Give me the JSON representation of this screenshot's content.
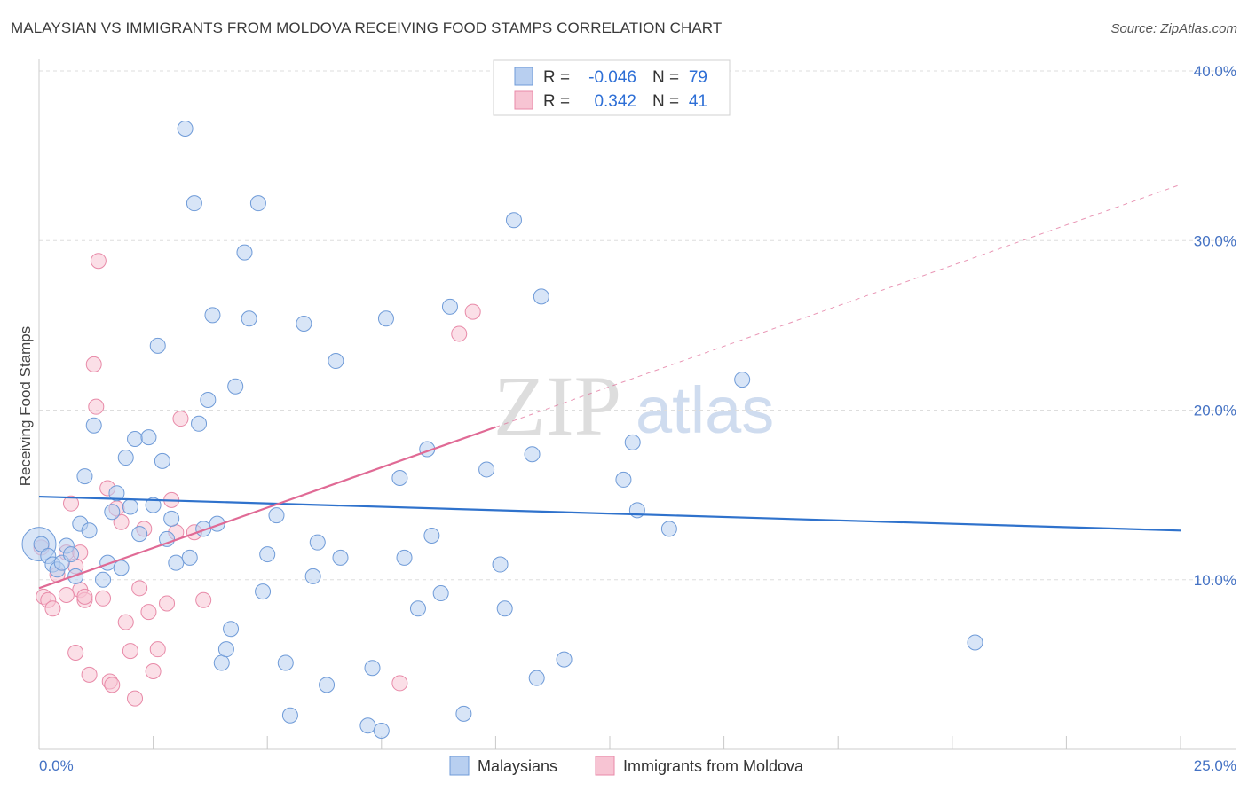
{
  "title": "MALAYSIAN VS IMMIGRANTS FROM MOLDOVA RECEIVING FOOD STAMPS CORRELATION CHART",
  "source": "Source: ZipAtlas.com",
  "watermark": {
    "zip": "ZIP",
    "atlas": "atlas"
  },
  "colors": {
    "blue_fill": "#b8cff0",
    "blue_stroke": "#6f9bd8",
    "blue_line": "#2f72cc",
    "pink_fill": "#f7c4d3",
    "pink_stroke": "#e88aa8",
    "pink_line": "#e06a95",
    "grid": "#dddddd",
    "axis_text": "#4472c4"
  },
  "legend": {
    "rows": [
      {
        "r_label": "R =",
        "r_value": "-0.046",
        "n_label": "N =",
        "n_value": "79"
      },
      {
        "r_label": "R =",
        "r_value": "0.342",
        "n_label": "N =",
        "n_value": "41"
      }
    ]
  },
  "bottom_legend": [
    "Malaysians",
    "Immigrants from Moldova"
  ],
  "chart_data": {
    "type": "scatter",
    "title": "MALAYSIAN VS IMMIGRANTS FROM MOLDOVA RECEIVING FOOD STAMPS CORRELATION CHART",
    "xlabel": "",
    "ylabel": "Receiving Food Stamps",
    "xlim": [
      0,
      25
    ],
    "ylim": [
      0,
      40
    ],
    "x_tick_labels": [
      "0.0%",
      "25.0%"
    ],
    "y_tick_values": [
      10,
      20,
      30,
      40
    ],
    "y_tick_labels": [
      "10.0%",
      "20.0%",
      "30.0%",
      "40.0%"
    ],
    "grid": true,
    "series": [
      {
        "name": "Malaysians",
        "r": -0.046,
        "n": 79,
        "trend": {
          "x0": 0,
          "y0": 14.9,
          "x1": 25,
          "y1": 12.9
        },
        "points": [
          [
            0.05,
            12.1
          ],
          [
            0.2,
            11.4
          ],
          [
            0.3,
            10.9
          ],
          [
            0.4,
            10.6
          ],
          [
            0.5,
            11.0
          ],
          [
            0.6,
            12.0
          ],
          [
            0.7,
            11.5
          ],
          [
            0.8,
            10.2
          ],
          [
            0.9,
            13.3
          ],
          [
            1.0,
            16.1
          ],
          [
            1.1,
            12.9
          ],
          [
            1.2,
            19.1
          ],
          [
            1.4,
            10.0
          ],
          [
            1.5,
            11.0
          ],
          [
            1.6,
            14.0
          ],
          [
            1.7,
            15.1
          ],
          [
            1.8,
            10.7
          ],
          [
            1.9,
            17.2
          ],
          [
            2.0,
            14.3
          ],
          [
            2.1,
            18.3
          ],
          [
            2.2,
            12.7
          ],
          [
            2.4,
            18.4
          ],
          [
            2.5,
            14.4
          ],
          [
            2.6,
            23.8
          ],
          [
            2.7,
            17.0
          ],
          [
            2.8,
            12.4
          ],
          [
            2.9,
            13.6
          ],
          [
            3.0,
            11.0
          ],
          [
            3.2,
            36.6
          ],
          [
            3.3,
            11.3
          ],
          [
            3.4,
            32.2
          ],
          [
            3.5,
            19.2
          ],
          [
            3.6,
            13.0
          ],
          [
            3.7,
            20.6
          ],
          [
            3.8,
            25.6
          ],
          [
            3.9,
            13.3
          ],
          [
            4.0,
            5.1
          ],
          [
            4.1,
            5.9
          ],
          [
            4.2,
            7.1
          ],
          [
            4.3,
            21.4
          ],
          [
            4.5,
            29.3
          ],
          [
            4.6,
            25.4
          ],
          [
            4.8,
            32.2
          ],
          [
            4.9,
            9.3
          ],
          [
            5.0,
            11.5
          ],
          [
            5.2,
            13.8
          ],
          [
            5.4,
            5.1
          ],
          [
            5.5,
            2.0
          ],
          [
            5.8,
            25.1
          ],
          [
            6.0,
            10.2
          ],
          [
            6.1,
            12.2
          ],
          [
            6.3,
            3.8
          ],
          [
            6.5,
            22.9
          ],
          [
            6.6,
            11.3
          ],
          [
            7.2,
            1.4
          ],
          [
            7.3,
            4.8
          ],
          [
            7.5,
            1.1
          ],
          [
            7.6,
            25.4
          ],
          [
            7.9,
            16.0
          ],
          [
            8.0,
            11.3
          ],
          [
            8.3,
            8.3
          ],
          [
            8.5,
            17.7
          ],
          [
            8.6,
            12.6
          ],
          [
            8.8,
            9.2
          ],
          [
            9.0,
            26.1
          ],
          [
            9.3,
            2.1
          ],
          [
            9.8,
            16.5
          ],
          [
            10.1,
            10.9
          ],
          [
            10.2,
            8.3
          ],
          [
            10.4,
            31.2
          ],
          [
            10.8,
            17.4
          ],
          [
            10.9,
            4.2
          ],
          [
            11.0,
            26.7
          ],
          [
            11.5,
            5.3
          ],
          [
            12.8,
            15.9
          ],
          [
            13.0,
            18.1
          ],
          [
            13.1,
            14.1
          ],
          [
            13.8,
            13.0
          ],
          [
            15.4,
            21.8
          ],
          [
            20.5,
            6.3
          ]
        ]
      },
      {
        "name": "Immigrants from Moldova",
        "r": 0.342,
        "n": 41,
        "trend": {
          "x0": 0,
          "y0": 9.5,
          "x1": 10,
          "y1": 19.0,
          "dash_x1": 25,
          "dash_y1": 33.3
        },
        "points": [
          [
            0.05,
            11.9
          ],
          [
            0.1,
            9.0
          ],
          [
            0.2,
            8.8
          ],
          [
            0.3,
            8.3
          ],
          [
            0.4,
            10.3
          ],
          [
            0.6,
            11.6
          ],
          [
            0.7,
            14.5
          ],
          [
            0.8,
            5.7
          ],
          [
            0.9,
            9.4
          ],
          [
            1.0,
            8.8
          ],
          [
            1.1,
            4.4
          ],
          [
            1.2,
            22.7
          ],
          [
            1.25,
            20.2
          ],
          [
            1.3,
            28.8
          ],
          [
            1.4,
            8.9
          ],
          [
            1.5,
            15.4
          ],
          [
            1.55,
            4.0
          ],
          [
            1.6,
            3.8
          ],
          [
            1.7,
            14.2
          ],
          [
            1.8,
            13.4
          ],
          [
            1.9,
            7.5
          ],
          [
            2.0,
            5.8
          ],
          [
            2.1,
            3.0
          ],
          [
            2.2,
            9.5
          ],
          [
            2.3,
            13.0
          ],
          [
            2.4,
            8.1
          ],
          [
            2.5,
            4.6
          ],
          [
            2.6,
            5.9
          ],
          [
            2.8,
            8.6
          ],
          [
            2.9,
            14.7
          ],
          [
            3.0,
            12.8
          ],
          [
            3.1,
            19.5
          ],
          [
            3.4,
            12.8
          ],
          [
            3.6,
            8.8
          ],
          [
            7.9,
            3.9
          ],
          [
            9.2,
            24.5
          ],
          [
            9.5,
            25.8
          ],
          [
            0.9,
            11.6
          ],
          [
            1.0,
            9.0
          ],
          [
            0.6,
            9.1
          ],
          [
            0.8,
            10.8
          ]
        ]
      }
    ]
  }
}
